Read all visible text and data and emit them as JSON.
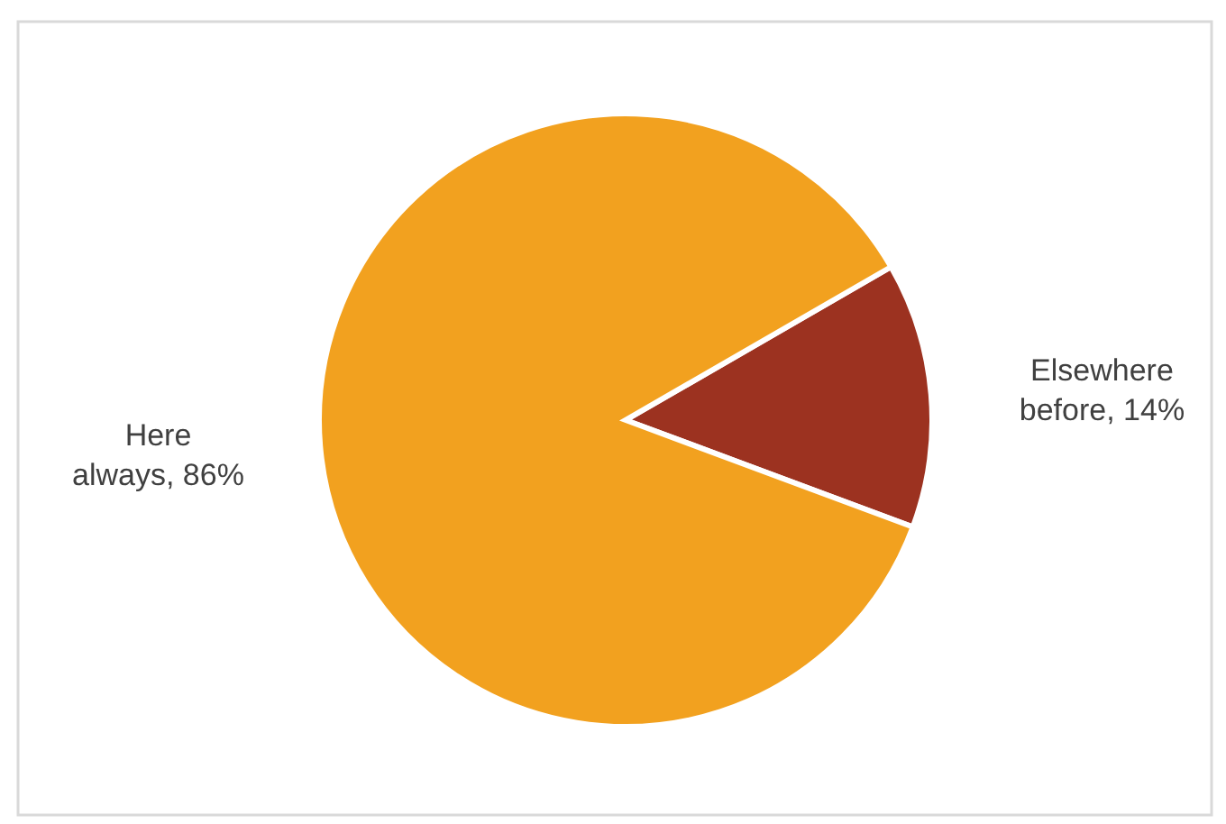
{
  "chart_data": {
    "type": "pie",
    "categories": [
      "Elsewhere before",
      "Here always"
    ],
    "values": [
      14,
      86
    ],
    "value_labels": [
      ", 14%",
      ", 86%"
    ],
    "colors": [
      "#9c3220",
      "#f2a11f"
    ]
  }
}
